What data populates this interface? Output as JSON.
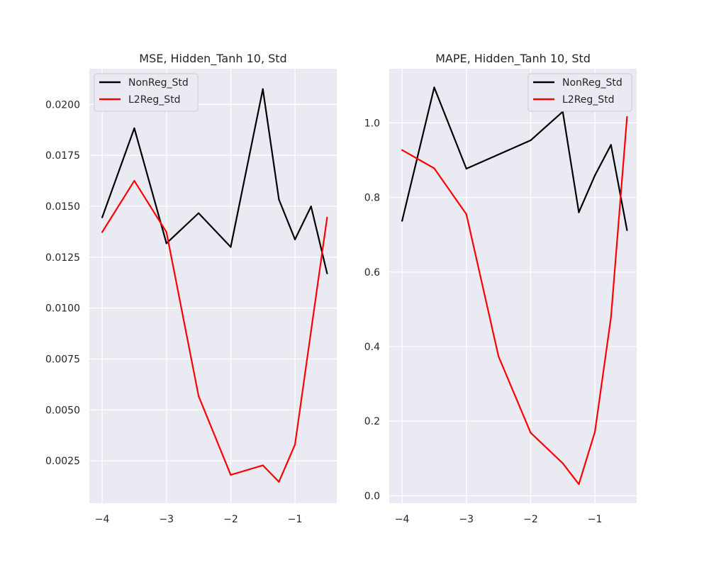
{
  "chart_data": [
    {
      "type": "line",
      "title": "MSE, Hidden_Tanh 10, Std",
      "xlabel": "",
      "ylabel": "",
      "xlim": [
        -4.2,
        -0.35
      ],
      "ylim": [
        0.00042,
        0.02175
      ],
      "xticks": [
        -4,
        -3,
        -2,
        -1
      ],
      "xtick_labels": [
        "−4",
        "−3",
        "−2",
        "−1"
      ],
      "yticks": [
        0.0025,
        0.005,
        0.0075,
        0.01,
        0.0125,
        0.015,
        0.0175,
        0.02
      ],
      "ytick_labels": [
        "0.0025",
        "0.0050",
        "0.0075",
        "0.0100",
        "0.0125",
        "0.0150",
        "0.0175",
        "0.0200"
      ],
      "grid": true,
      "legend": "top-left",
      "series": [
        {
          "name": "NonReg_Std",
          "color": "#000000",
          "x": [
            -4,
            -3.5,
            -3,
            -2.5,
            -2,
            -1.5,
            -1.25,
            -1,
            -0.75,
            -0.5
          ],
          "y": [
            0.01445,
            0.01883,
            0.01318,
            0.01466,
            0.013,
            0.02075,
            0.01533,
            0.01337,
            0.01499,
            0.0117
          ]
        },
        {
          "name": "L2Reg_Std",
          "color": "#ff0000",
          "x": [
            -4,
            -3.5,
            -3,
            -2.5,
            -2,
            -1.5,
            -1.25,
            -1,
            -0.75,
            -0.5
          ],
          "y": [
            0.01373,
            0.01625,
            0.01373,
            0.00568,
            0.00181,
            0.00228,
            0.00147,
            0.0033,
            0.00888,
            0.01445
          ]
        }
      ]
    },
    {
      "type": "line",
      "title": "MAPE, Hidden_Tanh 10, Std",
      "xlabel": "",
      "ylabel": "",
      "xlim": [
        -4.2,
        -0.35
      ],
      "ylim": [
        -0.02,
        1.145
      ],
      "xticks": [
        -4,
        -3,
        -2,
        -1
      ],
      "xtick_labels": [
        "−4",
        "−3",
        "−2",
        "−1"
      ],
      "yticks": [
        0.0,
        0.2,
        0.4,
        0.6,
        0.8,
        1.0
      ],
      "ytick_labels": [
        "0.0",
        "0.2",
        "0.4",
        "0.6",
        "0.8",
        "1.0"
      ],
      "grid": true,
      "legend": "top-right",
      "series": [
        {
          "name": "NonReg_Std",
          "color": "#000000",
          "x": [
            -4,
            -3.5,
            -3,
            -2.5,
            -2,
            -1.5,
            -1.25,
            -1,
            -0.75,
            -0.5
          ],
          "y": [
            0.737,
            1.095,
            0.877,
            0.915,
            0.953,
            1.03,
            0.76,
            0.859,
            0.941,
            0.712
          ]
        },
        {
          "name": "L2Reg_Std",
          "color": "#ff0000",
          "x": [
            -4,
            -3.5,
            -3,
            -2.5,
            -2,
            -1.5,
            -1.25,
            -1,
            -0.75,
            -0.5
          ],
          "y": [
            0.927,
            0.878,
            0.755,
            0.374,
            0.169,
            0.087,
            0.031,
            0.171,
            0.478,
            1.016
          ]
        }
      ]
    }
  ]
}
